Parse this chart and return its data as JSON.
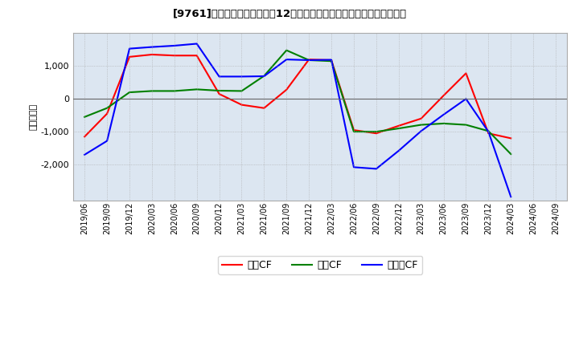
{
  "title": "[9761]　キャッシュフローの12か月移動合計の対前年同期増減額の推移",
  "ylabel": "（百万円）",
  "background_color": "#ffffff",
  "plot_background_color": "#dce6f1",
  "x_labels": [
    "2019/06",
    "2019/09",
    "2019/12",
    "2020/03",
    "2020/06",
    "2020/09",
    "2020/12",
    "2021/03",
    "2021/06",
    "2021/09",
    "2021/12",
    "2022/03",
    "2022/06",
    "2022/09",
    "2022/12",
    "2023/03",
    "2023/06",
    "2023/09",
    "2023/12",
    "2024/03",
    "2024/06",
    "2024/09"
  ],
  "operating_cf": [
    -1150,
    -450,
    1280,
    1350,
    1320,
    1320,
    150,
    -180,
    -280,
    280,
    1200,
    1180,
    -950,
    -1050,
    -820,
    -600,
    100,
    780,
    -1050,
    -1200,
    null,
    null
  ],
  "investing_cf": [
    -550,
    -280,
    200,
    240,
    240,
    290,
    250,
    240,
    700,
    1480,
    1180,
    1150,
    -1000,
    -1000,
    -900,
    -790,
    -750,
    -790,
    -980,
    -1680,
    null,
    null
  ],
  "free_cf": [
    -1700,
    -1280,
    1530,
    1580,
    1620,
    1680,
    680,
    680,
    690,
    1200,
    1180,
    1190,
    -2080,
    -2130,
    -1580,
    -980,
    -480,
    0,
    -1000,
    -2980,
    null,
    null
  ],
  "operating_color": "#ff0000",
  "investing_color": "#008000",
  "free_color": "#0000ff",
  "ylim": [
    -3100,
    2000
  ],
  "yticks": [
    -2000,
    -1000,
    0,
    1000
  ],
  "line_width": 1.5,
  "legend_labels": [
    "営業CF",
    "投資CF",
    "フリーCF"
  ]
}
